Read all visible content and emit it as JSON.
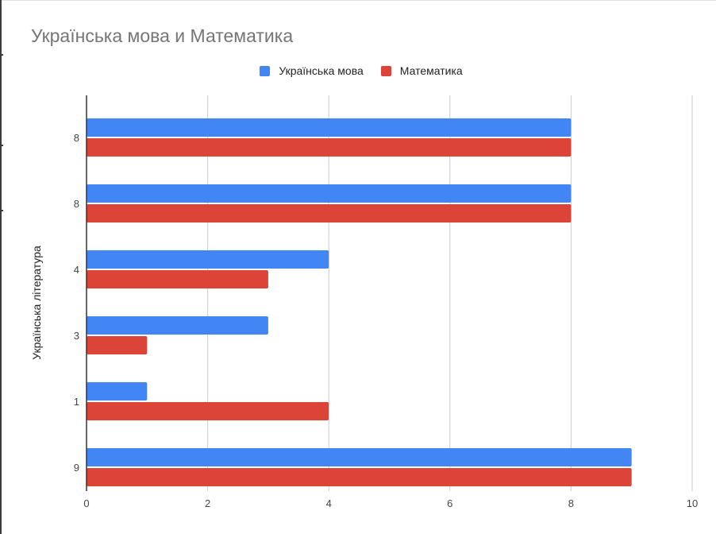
{
  "chart_data": {
    "type": "bar",
    "orientation": "horizontal",
    "title": "Українська мова и Математика",
    "ylabel": "Українська література",
    "xlabel": "",
    "categories": [
      "8",
      "8",
      "4",
      "3",
      "1",
      "9"
    ],
    "series": [
      {
        "name": "Українська мова",
        "color": "#4285f4",
        "values": [
          8,
          8,
          4,
          3,
          1,
          9
        ]
      },
      {
        "name": "Математика",
        "color": "#db4437",
        "values": [
          8,
          8,
          3,
          1,
          4,
          9
        ]
      }
    ],
    "xlim": [
      0,
      10
    ],
    "x_ticks": [
      0,
      2,
      4,
      6,
      8,
      10
    ],
    "grid": true,
    "legend_position": "top"
  }
}
